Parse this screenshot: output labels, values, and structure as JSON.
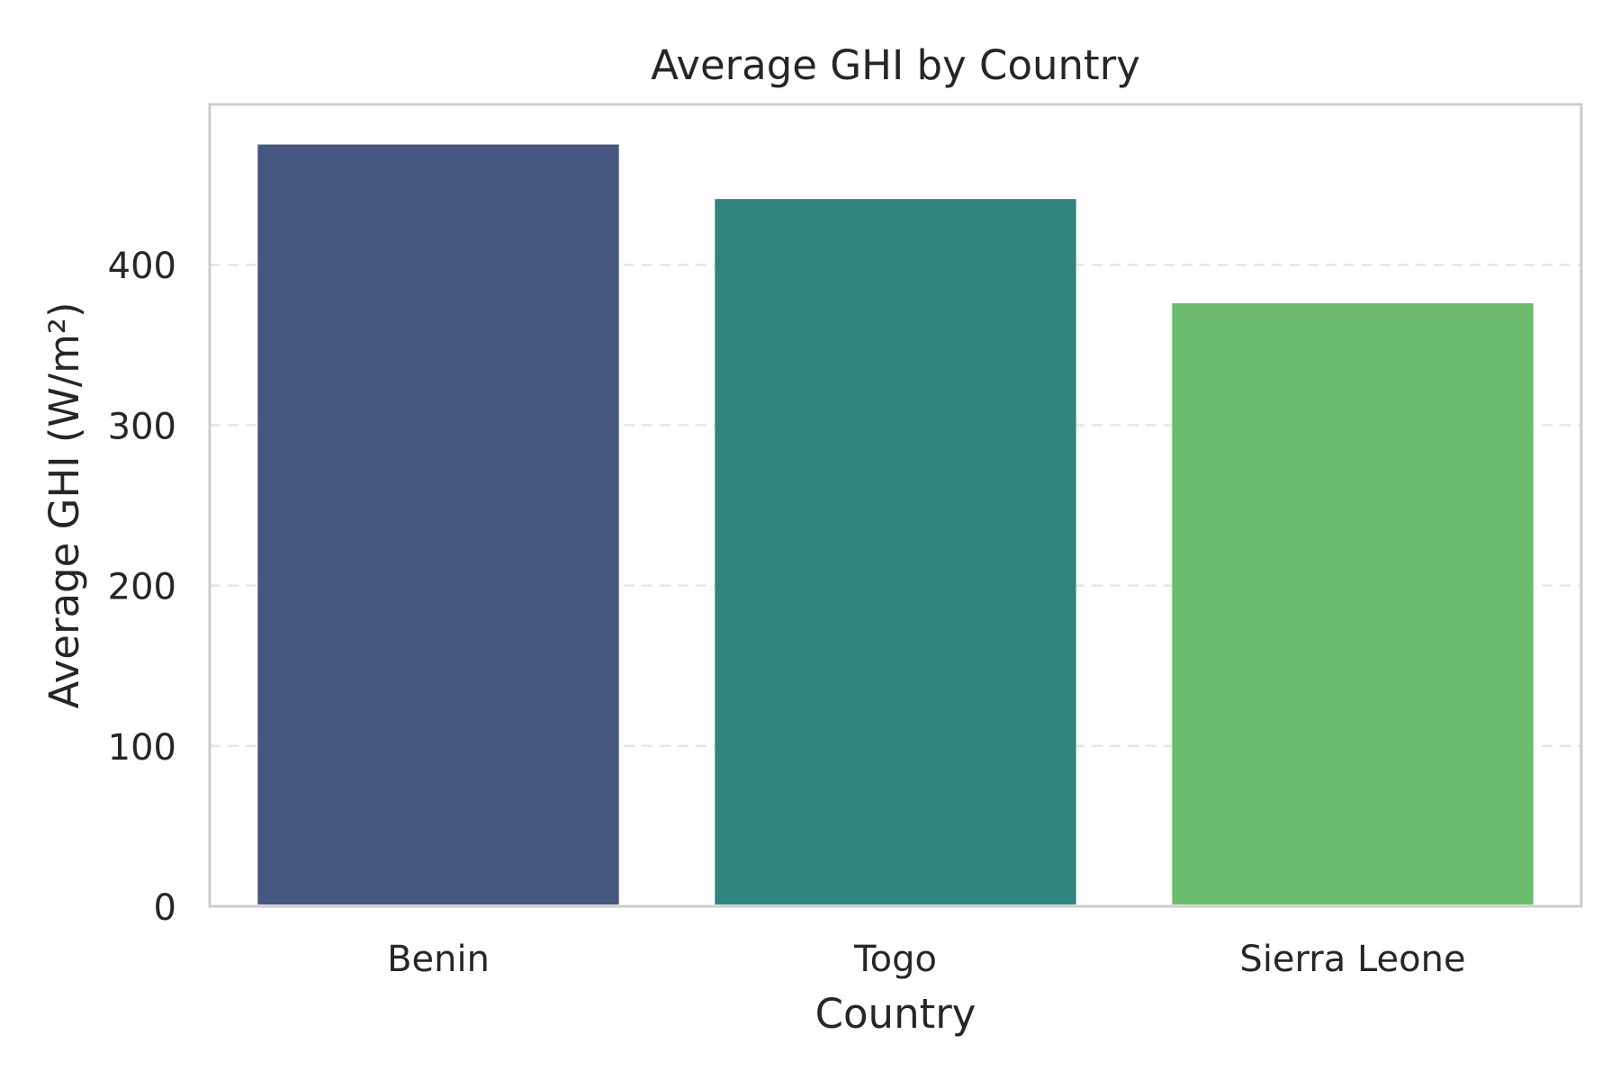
{
  "chart_data": {
    "type": "bar",
    "title": "Average GHI by Country",
    "xlabel": "Country",
    "ylabel": "Average GHI (W/m²)",
    "categories": [
      "Benin",
      "Togo",
      "Sierra Leone"
    ],
    "values": [
      475,
      441,
      376
    ],
    "ylim": [
      0,
      500
    ],
    "yticks": [
      0,
      100,
      200,
      300,
      400
    ],
    "ytick_labels": [
      "0",
      "100",
      "200",
      "300",
      "400"
    ],
    "grid": "y-dashed",
    "legend": "none",
    "colors": [
      "#46587f",
      "#30847e",
      "#6cbc6e"
    ],
    "frame_color": "#cccccc",
    "grid_color": "#e6e6e6",
    "text_color": "#262626"
  }
}
